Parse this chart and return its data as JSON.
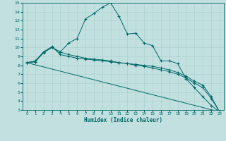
{
  "xlabel": "Humidex (Indice chaleur)",
  "bg_color": "#c2e0e0",
  "line_color": "#006868",
  "grid_color": "#aacece",
  "xlim": [
    -0.5,
    23.5
  ],
  "ylim": [
    3,
    15
  ],
  "xticks": [
    0,
    1,
    2,
    3,
    4,
    5,
    6,
    7,
    8,
    9,
    10,
    11,
    12,
    13,
    14,
    15,
    16,
    17,
    18,
    19,
    20,
    21,
    22,
    23
  ],
  "yticks": [
    3,
    4,
    5,
    6,
    7,
    8,
    9,
    10,
    11,
    12,
    13,
    14,
    15
  ],
  "line1_x": [
    0,
    1,
    2,
    3,
    4,
    5,
    6,
    7,
    8,
    9,
    10,
    11,
    12,
    13,
    14,
    15,
    16,
    17,
    18,
    19,
    20,
    21,
    22,
    23
  ],
  "line1_y": [
    8.3,
    8.5,
    9.5,
    10.0,
    9.5,
    10.5,
    11.0,
    13.2,
    13.8,
    14.5,
    15.0,
    13.5,
    11.5,
    11.6,
    10.5,
    10.2,
    8.5,
    8.5,
    8.2,
    6.5,
    5.5,
    4.5,
    3.5,
    2.8
  ],
  "line2_x": [
    0,
    1,
    2,
    3,
    4,
    5,
    6,
    7,
    8,
    9,
    10,
    11,
    12,
    13,
    14,
    15,
    16,
    17,
    18,
    19,
    20,
    21,
    22,
    23
  ],
  "line2_y": [
    8.3,
    8.4,
    9.5,
    10.1,
    9.2,
    9.0,
    8.8,
    8.7,
    8.6,
    8.5,
    8.4,
    8.3,
    8.2,
    8.1,
    8.0,
    7.9,
    7.7,
    7.5,
    7.2,
    6.8,
    6.2,
    5.8,
    4.5,
    2.8
  ],
  "line3_x": [
    0,
    1,
    2,
    3,
    4,
    5,
    6,
    7,
    8,
    9,
    10,
    11,
    12,
    13,
    14,
    15,
    16,
    17,
    18,
    19,
    20,
    21,
    22,
    23
  ],
  "line3_y": [
    8.3,
    8.4,
    9.4,
    10.0,
    9.5,
    9.2,
    9.0,
    8.8,
    8.7,
    8.6,
    8.5,
    8.3,
    8.2,
    8.0,
    7.9,
    7.7,
    7.5,
    7.3,
    7.0,
    6.6,
    6.0,
    5.5,
    4.3,
    2.8
  ],
  "line4_x": [
    0,
    23
  ],
  "line4_y": [
    8.3,
    2.8
  ]
}
